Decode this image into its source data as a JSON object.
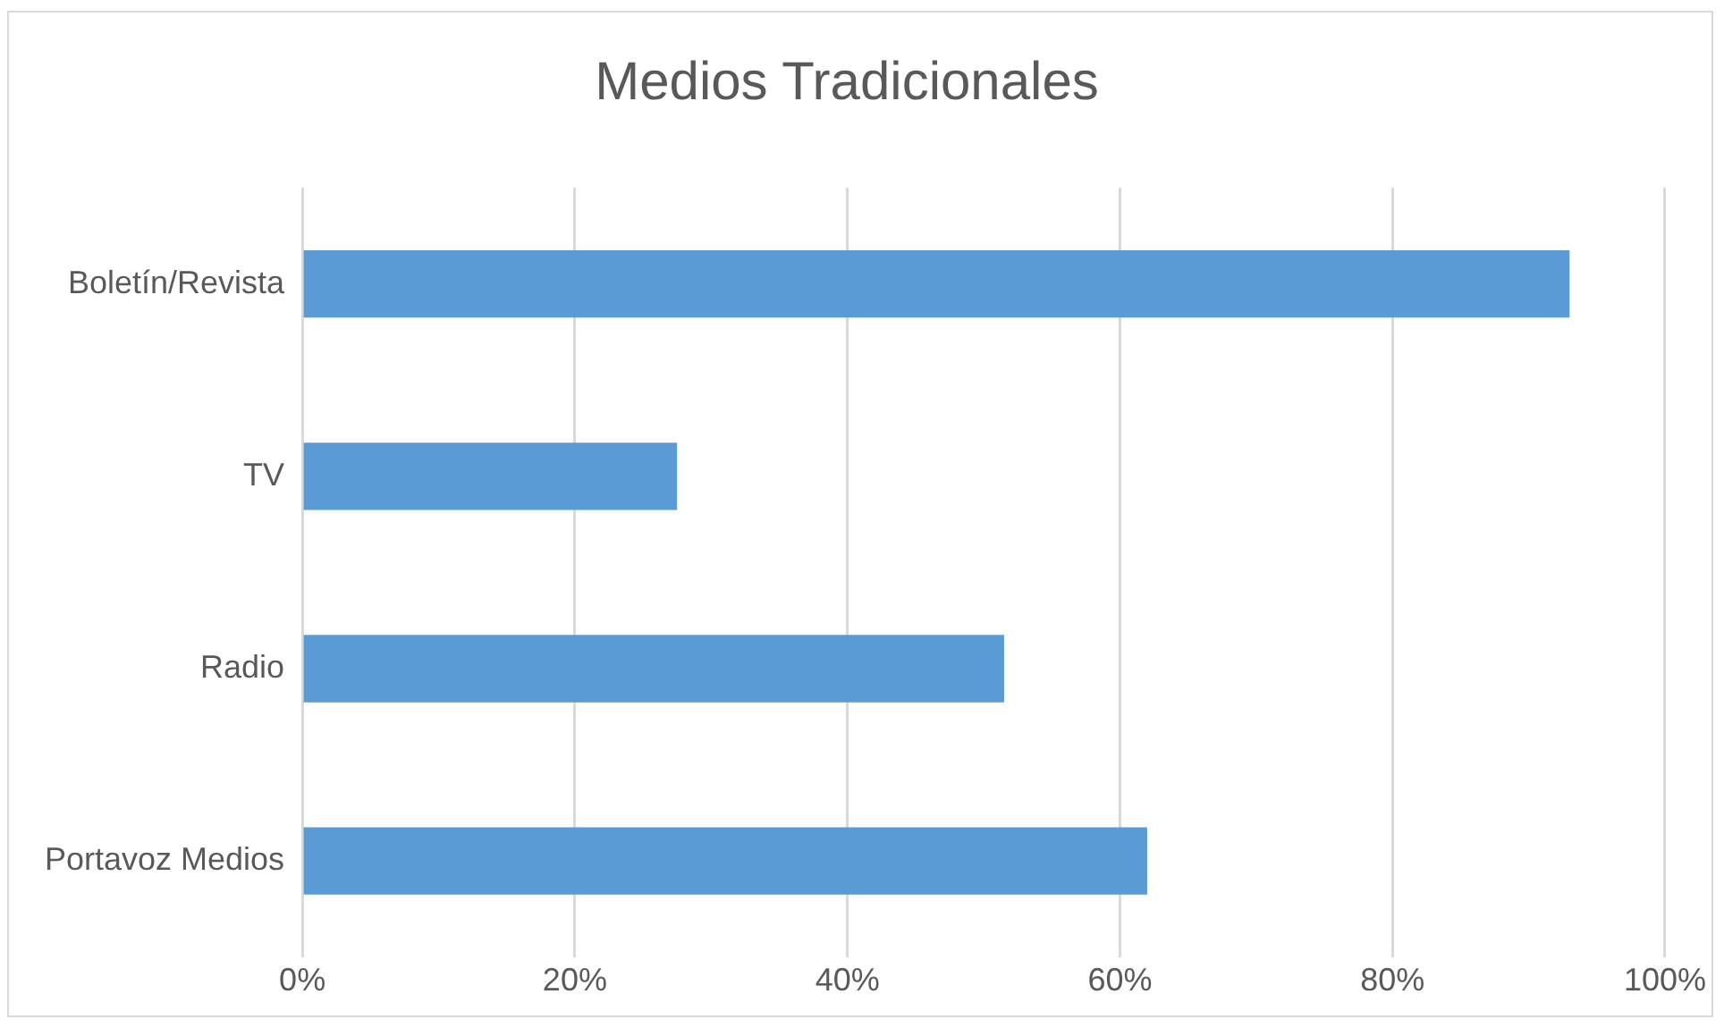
{
  "chart_data": {
    "type": "bar",
    "orientation": "horizontal",
    "title": "Medios Tradicionales",
    "categories": [
      "Boletín/Revista",
      "TV",
      "Radio",
      "Portavoz Medios"
    ],
    "values": [
      93,
      27.5,
      51.5,
      62
    ],
    "color": "#5b9bd5",
    "xlim": [
      0,
      100
    ],
    "xticks": [
      {
        "value": 0,
        "label": "0%"
      },
      {
        "value": 20,
        "label": "20%"
      },
      {
        "value": 40,
        "label": "40%"
      },
      {
        "value": 60,
        "label": "60%"
      },
      {
        "value": 80,
        "label": "80%"
      },
      {
        "value": 100,
        "label": "100%"
      }
    ],
    "grid": "x"
  }
}
